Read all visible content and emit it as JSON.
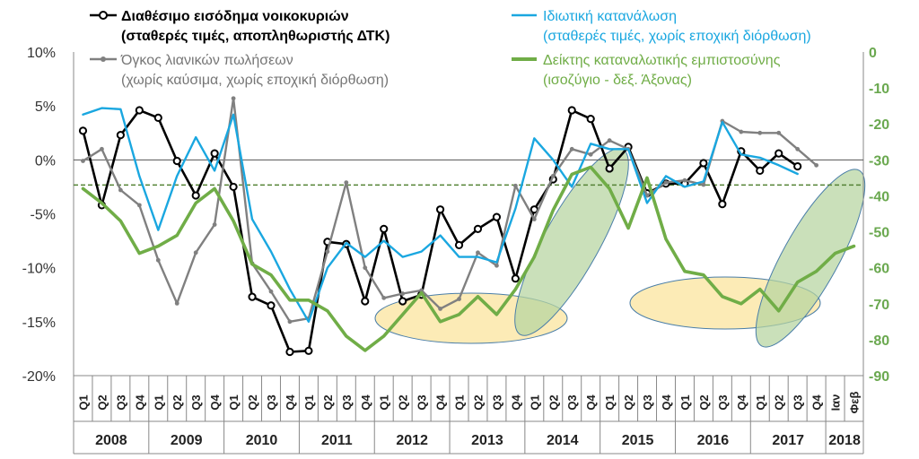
{
  "chart_data": {
    "type": "line",
    "title": "",
    "xlabel": "",
    "ylabel": "",
    "y_left": {
      "min": -20,
      "max": 10,
      "step": 5,
      "suffix": "%"
    },
    "y_right": {
      "min": -90,
      "max": 0,
      "step": 10
    },
    "x_quarters": [
      "Q1",
      "Q2",
      "Q3",
      "Q4",
      "Q1",
      "Q2",
      "Q3",
      "Q4",
      "Q1",
      "Q2",
      "Q3",
      "Q4",
      "Q1",
      "Q2",
      "Q3",
      "Q4",
      "Q1",
      "Q2",
      "Q3",
      "Q4",
      "Q1",
      "Q2",
      "Q3",
      "Q4",
      "Q1",
      "Q2",
      "Q3",
      "Q4",
      "Q1",
      "Q2",
      "Q3",
      "Q4",
      "Q1",
      "Q2",
      "Q3",
      "Q4",
      "Q1",
      "Q2",
      "Q3",
      "Q4",
      "Ιαν",
      "Φεβ"
    ],
    "x_years": [
      "2008",
      "2009",
      "2010",
      "2011",
      "2012",
      "2013",
      "2014",
      "2015",
      "2016",
      "2017",
      "2018"
    ],
    "reference_line": {
      "axis": "right",
      "value": -37,
      "style": "dashed"
    },
    "series": [
      {
        "name": "Διαθέσιμο εισόδημα νοικοκυριών",
        "name_line2": "(σταθερές τιμές, αποπληθωριστής ΔΤΚ)",
        "axis": "left",
        "color": "#000000",
        "marker": "circle-open",
        "values": [
          2.7,
          -4.2,
          2.3,
          4.6,
          3.9,
          -0.1,
          -3.3,
          0.6,
          -2.5,
          -12.7,
          -13.5,
          -17.8,
          -17.7,
          -7.6,
          -7.8,
          -13.1,
          -6.4,
          -13.1,
          -12.5,
          -4.6,
          -7.9,
          -6.4,
          -5.3,
          -11.0,
          -4.6,
          -1.8,
          4.6,
          3.8,
          -0.8,
          1.2,
          -3.1,
          -2.2,
          -2.2,
          -0.3,
          -4.1,
          0.8,
          -1.0,
          0.6,
          -0.6,
          null,
          null,
          null
        ]
      },
      {
        "name": "Όγκος λιανικών πωλήσεων",
        "name_line2": "(χωρίς καύσιμα, χωρίς εποχική διόρθωση)",
        "axis": "left",
        "color": "#808080",
        "marker": "dot",
        "values": [
          -0.1,
          1.0,
          -2.8,
          -4.2,
          -9.3,
          -13.3,
          -8.6,
          -6.0,
          5.7,
          -9.6,
          -12.2,
          -15.0,
          -14.7,
          -8.5,
          -2.1,
          -10.0,
          -12.8,
          -12.4,
          -12.1,
          -13.8,
          -12.9,
          -8.6,
          -9.8,
          -2.4,
          -5.5,
          -1.5,
          1.0,
          0.5,
          1.8,
          1.0,
          -3.3,
          -2.1,
          -1.9,
          -2.3,
          3.6,
          2.6,
          2.5,
          2.5,
          1.0,
          -0.5,
          null,
          null
        ]
      },
      {
        "name": "Ιδιωτική κατανάλωση",
        "name_line2": "(σταθερές τιμές, χωρίς εποχική διόρθωση)",
        "axis": "left",
        "color": "#1aa7e0",
        "marker": "none",
        "values": [
          4.2,
          4.8,
          4.7,
          -1.5,
          -6.5,
          -1.5,
          2.1,
          -1.0,
          4.2,
          -5.5,
          -8.5,
          -12.0,
          -15.0,
          -10.0,
          -7.7,
          -9.0,
          -7.5,
          -9.0,
          -8.5,
          -7.0,
          -9.0,
          -9.0,
          -9.5,
          -4.5,
          2.0,
          0.0,
          -2.5,
          1.5,
          1.0,
          1.0,
          -4.0,
          -1.5,
          -2.5,
          -2.0,
          3.5,
          0.5,
          0.2,
          -0.5,
          -1.3,
          null,
          null,
          null
        ]
      },
      {
        "name": "Δείκτης καταναλωτικής εμπιστοσύνης",
        "name_line2": "(ισοζύγιο - δεξ. Άξονας)",
        "axis": "right",
        "color": "#70ad47",
        "marker": "none",
        "values": [
          -38,
          -42,
          -47,
          -56,
          -54,
          -51,
          -42,
          -38,
          -47,
          -59,
          -62,
          -69,
          -69,
          -72,
          -79,
          -83,
          -79,
          -73,
          -67,
          -75,
          -73,
          -68,
          -73,
          -66,
          -57,
          -44,
          -34,
          -32,
          -38,
          -49,
          -35,
          -52,
          -61,
          -62,
          -68,
          -70,
          -66,
          -72,
          -64,
          -61,
          -56,
          -54
        ]
      }
    ],
    "highlight_ellipses": [
      {
        "color": "yellow",
        "x_from": "2012 Q1",
        "x_to": "2013 Q4"
      },
      {
        "color": "green",
        "x_from": "2014 Q1",
        "x_to": "2015 Q1"
      },
      {
        "color": "yellow",
        "x_from": "2016 Q1",
        "x_to": "2017 Q4"
      },
      {
        "color": "green",
        "x_from": "2017 Q2",
        "x_to": "2018 Φεβ"
      }
    ]
  }
}
